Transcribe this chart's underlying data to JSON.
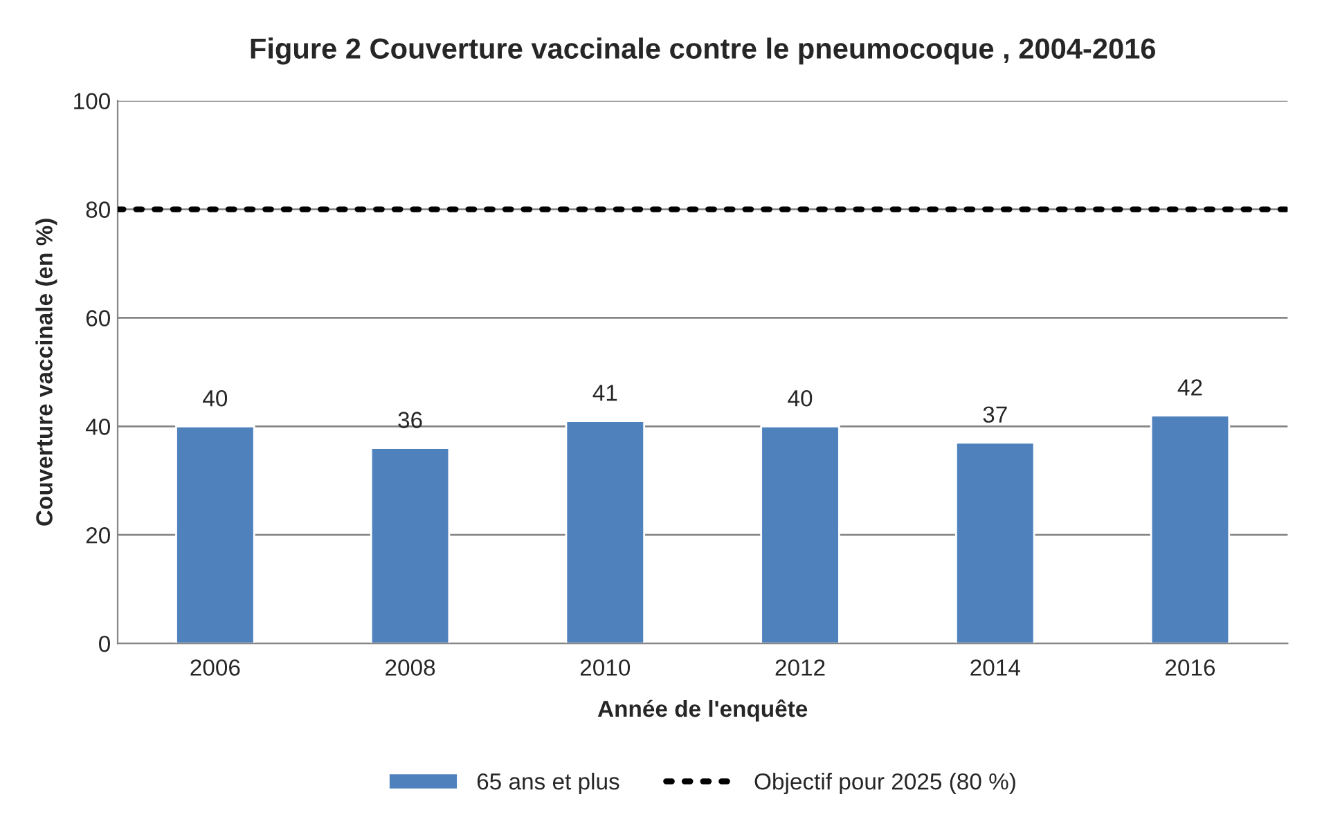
{
  "chart_data": {
    "type": "bar",
    "title": "Figure 2 Couverture vaccinale contre le pneumocoque , 2004-2016",
    "xlabel": "Année de l'enquête",
    "ylabel": "Couverture vaccinale (en %)",
    "categories": [
      "2006",
      "2008",
      "2010",
      "2012",
      "2014",
      "2016"
    ],
    "series": [
      {
        "name": "65 ans et plus",
        "color": "#4f81bd",
        "values": [
          40,
          36,
          41,
          40,
          37,
          42
        ]
      }
    ],
    "ref_lines": [
      {
        "axis": "y",
        "value": 80,
        "label": "Objectif pour 2025 (80 %)",
        "color": "#000000",
        "line_style": "dotted"
      }
    ],
    "ylim": [
      0,
      100
    ],
    "yticks": [
      0,
      20,
      40,
      60,
      80,
      100
    ],
    "grid": "y",
    "legend": "bottom",
    "data_labels": true
  }
}
